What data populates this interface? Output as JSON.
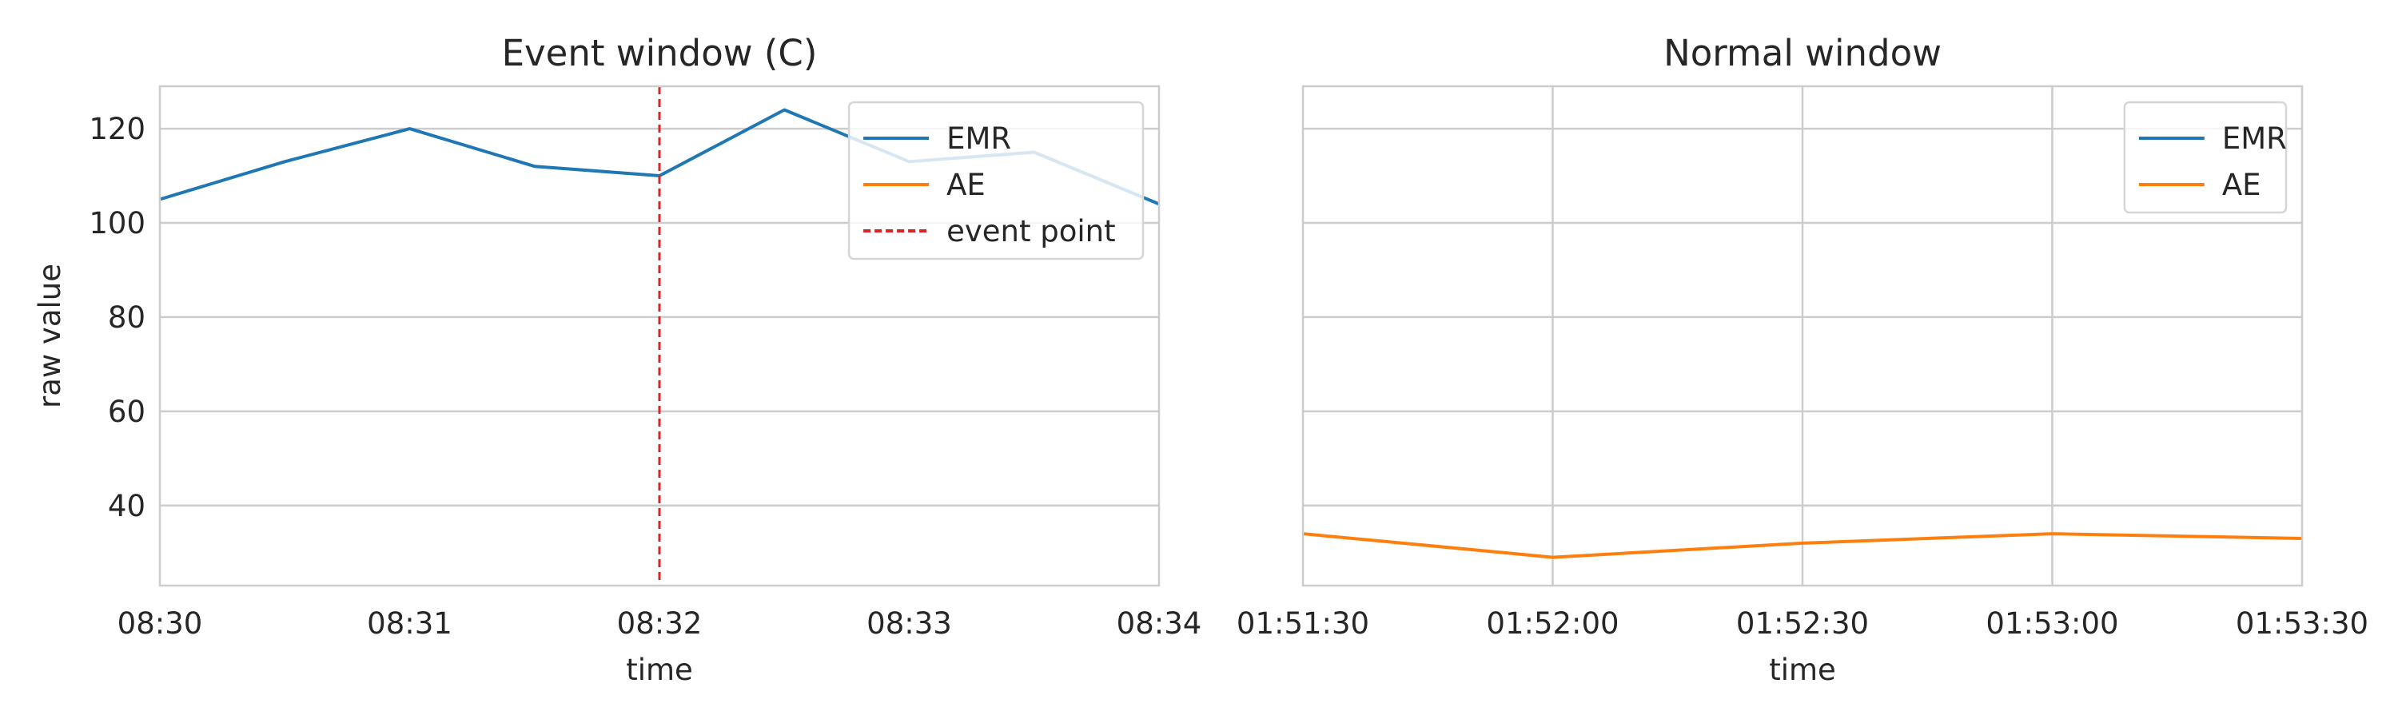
{
  "chart_data": [
    {
      "type": "line",
      "title": "Event window (C)",
      "xlabel": "time",
      "ylabel": "raw value",
      "x_ticks": [
        "08:30",
        "08:31",
        "08:32",
        "08:33",
        "08:34"
      ],
      "x_range": [
        "08:30:00",
        "08:34:00"
      ],
      "ylim": [
        23,
        129
      ],
      "y_ticks": [
        40,
        60,
        80,
        100,
        120
      ],
      "grid": "horizontal",
      "legend": "top-right",
      "series": [
        {
          "name": "EMR",
          "color": "#1f77b4",
          "x": [
            "08:30:00",
            "08:30:30",
            "08:31:00",
            "08:31:30",
            "08:32:00",
            "08:32:30",
            "08:33:00",
            "08:33:30",
            "08:34:00"
          ],
          "y": [
            105,
            113,
            120,
            112,
            110,
            124,
            113,
            115,
            104
          ]
        },
        {
          "name": "AE",
          "color": "#ff7f0e",
          "x": [],
          "y": []
        }
      ],
      "annotations": [
        {
          "type": "vline",
          "x": "08:32:00",
          "label": "event point",
          "color": "#d62728",
          "style": "dashed"
        }
      ]
    },
    {
      "type": "line",
      "title": "Normal window",
      "xlabel": "time",
      "ylabel": "",
      "x_ticks": [
        "01:51:30",
        "01:52:00",
        "01:52:30",
        "01:53:00",
        "01:53:30"
      ],
      "x_range": [
        "01:51:30",
        "01:53:30"
      ],
      "ylim": [
        23,
        129
      ],
      "shared_y": true,
      "grid": "both",
      "legend": "top-right",
      "series": [
        {
          "name": "EMR",
          "color": "#1f77b4",
          "x": [],
          "y": []
        },
        {
          "name": "AE",
          "color": "#ff7f0e",
          "x": [
            "01:51:30",
            "01:52:00",
            "01:52:30",
            "01:53:00",
            "01:53:30"
          ],
          "y": [
            34,
            29,
            32,
            34,
            33
          ]
        }
      ]
    }
  ]
}
